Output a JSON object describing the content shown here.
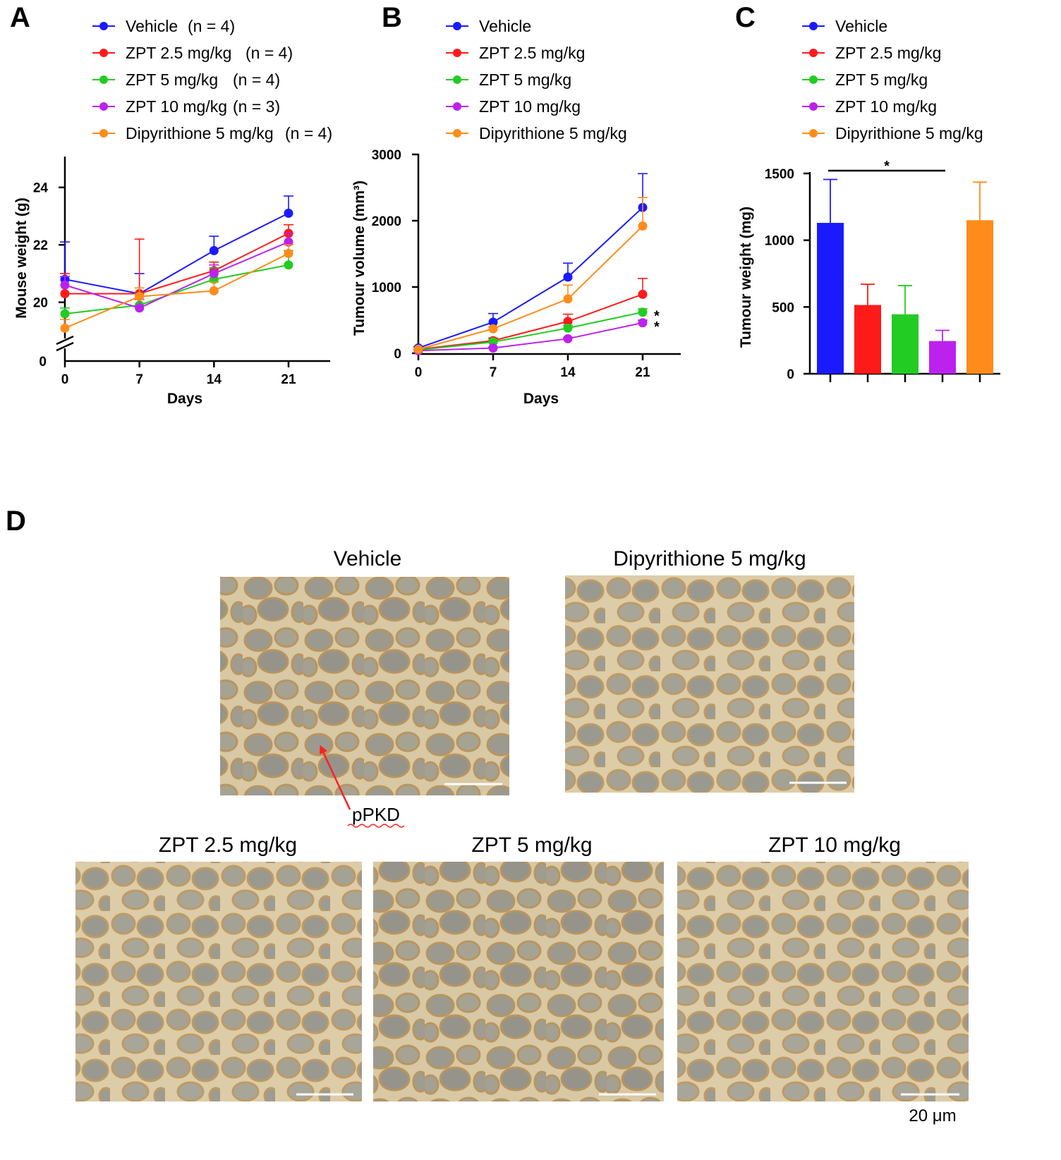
{
  "colors": {
    "vehicle": "#1a1aff",
    "zpt25": "#ff1a1a",
    "zpt5": "#22cc22",
    "zpt10": "#bb22ee",
    "dipy": "#ff8c1a",
    "arrow": "#ff2020"
  },
  "panel_labels": {
    "a": "A",
    "b": "B",
    "c": "C",
    "d": "D"
  },
  "legend_a": [
    {
      "name": "Vehicle",
      "n": "(n = 4)",
      "color_key": "vehicle"
    },
    {
      "name": "ZPT 2.5 mg/kg",
      "n": "(n = 4)",
      "color_key": "zpt25"
    },
    {
      "name": "ZPT 5 mg/kg",
      "n": "(n = 4)",
      "color_key": "zpt5"
    },
    {
      "name": "ZPT 10 mg/kg",
      "n": "(n = 3)",
      "color_key": "zpt10"
    },
    {
      "name": "Dipyrithione 5 mg/kg",
      "n": "(n = 4)",
      "color_key": "dipy"
    }
  ],
  "legend_bc": [
    {
      "name": "Vehicle",
      "color_key": "vehicle"
    },
    {
      "name": "ZPT 2.5 mg/kg",
      "color_key": "zpt25"
    },
    {
      "name": "ZPT 5 mg/kg",
      "color_key": "zpt5"
    },
    {
      "name": "ZPT 10 mg/kg",
      "color_key": "zpt10"
    },
    {
      "name": "Dipyrithione 5 mg/kg",
      "color_key": "dipy"
    }
  ],
  "chart_data": [
    {
      "id": "A",
      "type": "line",
      "xlabel": "Days",
      "ylabel": "Mouse weight (g)",
      "x": [
        0,
        7,
        14,
        21
      ],
      "x_ticks": [
        "0",
        "7",
        "14",
        "21"
      ],
      "y_ticks": [
        20,
        22,
        24
      ],
      "y_break_tick": "0",
      "ylim": [
        18.2,
        25
      ],
      "series": [
        {
          "name": "Vehicle",
          "color_key": "vehicle",
          "values": [
            20.8,
            20.3,
            21.8,
            23.1
          ],
          "err": [
            1.3,
            0.7,
            0.5,
            0.6
          ]
        },
        {
          "name": "ZPT 2.5 mg/kg",
          "color_key": "zpt25",
          "values": [
            20.3,
            20.3,
            21.1,
            22.4
          ],
          "err": [
            0.7,
            1.9,
            0.3,
            0.3
          ]
        },
        {
          "name": "ZPT 5 mg/kg",
          "color_key": "zpt5",
          "values": [
            19.6,
            19.9,
            20.8,
            21.3
          ],
          "err": [
            0.2,
            0.4,
            0.4,
            0.5
          ]
        },
        {
          "name": "ZPT 10 mg/kg",
          "color_key": "zpt10",
          "values": [
            20.6,
            19.8,
            21.0,
            22.1
          ],
          "err": [
            0.3,
            0.3,
            0.3,
            0.3
          ]
        },
        {
          "name": "Dipyrithione 5 mg/kg",
          "color_key": "dipy",
          "values": [
            19.1,
            20.2,
            20.4,
            21.7
          ],
          "err": [
            0.3,
            0.3,
            0.3,
            0.3
          ]
        }
      ]
    },
    {
      "id": "B",
      "type": "line",
      "xlabel": "Days",
      "ylabel": "Tumour volume (mm³)",
      "x": [
        0,
        7,
        14,
        21
      ],
      "x_ticks": [
        "0",
        "7",
        "14",
        "21"
      ],
      "y_ticks": [
        0,
        1000,
        2000,
        3000
      ],
      "ylim": [
        0,
        3000
      ],
      "significance": [
        {
          "series": "ZPT 5 mg/kg",
          "label": "*"
        },
        {
          "series": "ZPT 10 mg/kg",
          "label": "*"
        }
      ],
      "series": [
        {
          "name": "Vehicle",
          "color_key": "vehicle",
          "values": [
            80,
            470,
            1150,
            2200
          ],
          "err": [
            20,
            130,
            210,
            510
          ]
        },
        {
          "name": "ZPT 2.5 mg/kg",
          "color_key": "zpt25",
          "values": [
            60,
            190,
            480,
            890
          ],
          "err": [
            15,
            40,
            110,
            240
          ]
        },
        {
          "name": "ZPT 5 mg/kg",
          "color_key": "zpt5",
          "values": [
            50,
            170,
            380,
            620
          ],
          "err": [
            10,
            30,
            40,
            50
          ]
        },
        {
          "name": "ZPT 10 mg/kg",
          "color_key": "zpt10",
          "values": [
            40,
            80,
            220,
            460
          ],
          "err": [
            10,
            15,
            20,
            40
          ]
        },
        {
          "name": "Dipyrithione 5 mg/kg",
          "color_key": "dipy",
          "values": [
            60,
            370,
            820,
            1920
          ],
          "err": [
            15,
            30,
            210,
            430
          ]
        }
      ]
    },
    {
      "id": "C",
      "type": "bar",
      "ylabel": "Tumour weight (mg)",
      "categories": [
        "Vehicle",
        "ZPT 2.5 mg/kg",
        "ZPT 5 mg/kg",
        "ZPT 10 mg/kg",
        "Dipyrithione 5 mg/kg"
      ],
      "color_keys": [
        "vehicle",
        "zpt25",
        "zpt5",
        "zpt10",
        "dipy"
      ],
      "values": [
        1130,
        515,
        445,
        245,
        1150
      ],
      "err": [
        325,
        155,
        215,
        80,
        285
      ],
      "y_ticks": [
        0,
        500,
        1000,
        1500
      ],
      "ylim": [
        0,
        1500
      ],
      "significance": {
        "from": "Vehicle",
        "to": "ZPT 10 mg/kg",
        "label": "*"
      }
    }
  ],
  "panel_d": {
    "titles": {
      "vehicle": "Vehicle",
      "dipy": "Dipyrithione 5 mg/kg",
      "zpt25": "ZPT 2.5 mg/kg",
      "zpt5": "ZPT 5 mg/kg",
      "zpt10": "ZPT 10 mg/kg"
    },
    "annotation": "pPKD",
    "scale_bar_label": "20 μm"
  }
}
